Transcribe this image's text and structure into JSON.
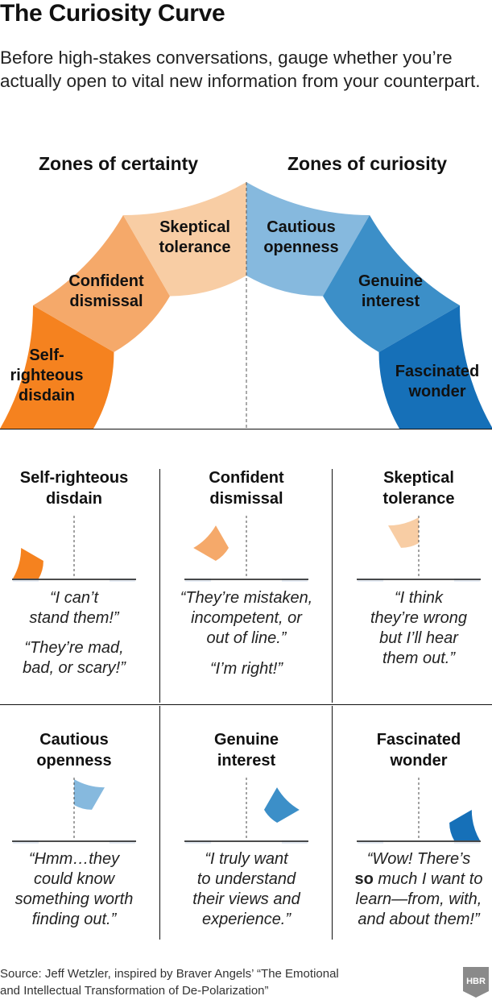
{
  "header": {
    "title": "The Curiosity Curve",
    "subtitle": "Before high-stakes conversations, gauge whether you’re actually open to vital new information from your counterpart."
  },
  "zones": {
    "certainty": "Zones of certainty",
    "curiosity": "Zones of curiosity"
  },
  "colors": {
    "background_arc": "#e6ecf4",
    "segments": [
      "#f5821f",
      "#f5a96a",
      "#f8cda4",
      "#86b9de",
      "#3c8fc8",
      "#1670b8"
    ]
  },
  "segments": [
    {
      "label": "Self-\nrighteous\ndisdain",
      "title": "Self-righteous\ndisdain",
      "quote": "“I can’t\nstand them!”",
      "quote2": "“They’re mad,\nbad, or scary!”"
    },
    {
      "label": "Confident\ndismissal",
      "title": "Confident\ndismissal",
      "quote": "“They’re mistaken,\nincompetent, or\nout of line.”",
      "quote2": "“I’m right!”"
    },
    {
      "label": "Skeptical\ntolerance",
      "title": "Skeptical\ntolerance",
      "quote": "“I think\nthey’re wrong\nbut I’ll hear\nthem out.”",
      "quote2": ""
    },
    {
      "label": "Cautious\nopenness",
      "title": "Cautious\nopenness",
      "quote": "“Hmm…they\ncould know\nsomething worth\nfinding out.”",
      "quote2": ""
    },
    {
      "label": "Genuine\ninterest",
      "title": "Genuine\ninterest",
      "quote": "“I truly want\nto understand\ntheir views and\nexperience.”",
      "quote2": ""
    },
    {
      "label": "Fascinated\nwonder",
      "title": "Fascinated\nwonder",
      "quote_pre": "“Wow! There’s",
      "quote_bold": "so",
      "quote_post": " much I want to\nlearn—from, with,\nand about them!”"
    }
  ],
  "footer": {
    "source": "Source: Jeff Wetzler, inspired by Braver Angels’ “The Emotional\nand Intellectual Transformation of De-Polarization”",
    "logo": "HBR"
  }
}
